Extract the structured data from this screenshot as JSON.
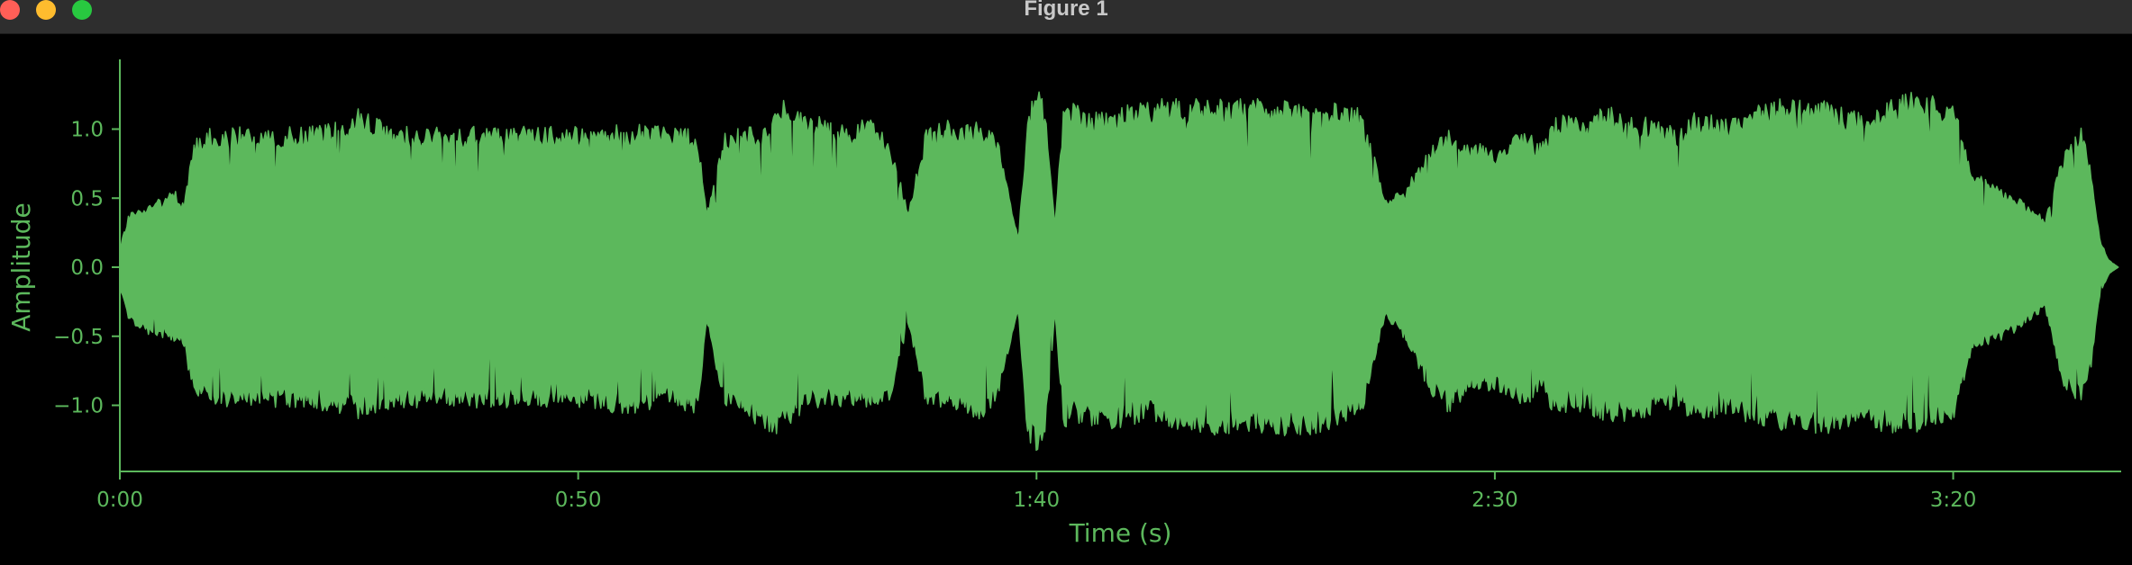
{
  "window": {
    "title": "Figure 1"
  },
  "theme": {
    "background": "#000000",
    "accent": "#5cb85c",
    "titlebar": "#2e2e2e"
  },
  "chart_data": {
    "type": "area",
    "title": "",
    "xlabel": "Time (s)",
    "ylabel": "Amplitude",
    "xlim": [
      0,
      218
    ],
    "ylim": [
      -1.5,
      1.5
    ],
    "x_ticks": [
      {
        "value": 0,
        "label": "0:00"
      },
      {
        "value": 50,
        "label": "0:50"
      },
      {
        "value": 100,
        "label": "1:40"
      },
      {
        "value": 150,
        "label": "2:30"
      },
      {
        "value": 200,
        "label": "3:20"
      }
    ],
    "y_ticks": [
      {
        "value": 1.0,
        "label": "1.0"
      },
      {
        "value": 0.5,
        "label": "0.5"
      },
      {
        "value": 0.0,
        "label": "0.0"
      },
      {
        "value": -0.5,
        "label": "−0.5"
      },
      {
        "value": -1.0,
        "label": "−1.0"
      }
    ],
    "series": [
      {
        "color": "#5cb85c",
        "x": [
          0,
          1,
          2,
          4,
          6,
          7,
          8,
          10,
          15,
          20,
          25,
          26,
          30,
          35,
          40,
          45,
          50,
          55,
          60,
          63,
          64,
          66,
          68,
          70,
          72,
          75,
          78,
          80,
          82,
          84,
          86,
          88,
          90,
          92,
          94,
          96,
          98,
          99,
          100,
          101,
          102,
          103,
          105,
          107,
          109,
          112,
          115,
          120,
          125,
          130,
          135,
          136,
          138,
          140,
          143,
          145,
          147,
          150,
          153,
          155,
          157,
          160,
          162,
          165,
          170,
          172,
          175,
          180,
          185,
          190,
          195,
          200,
          202,
          204,
          206,
          208,
          210,
          212,
          214,
          215,
          216,
          217,
          218
        ],
        "upper": [
          0.15,
          0.38,
          0.42,
          0.48,
          0.55,
          0.45,
          0.9,
          1.0,
          1.0,
          1.0,
          1.05,
          1.15,
          1.0,
          1.0,
          1.0,
          1.0,
          1.0,
          1.02,
          1.0,
          0.98,
          0.4,
          0.95,
          1.0,
          1.0,
          1.2,
          1.1,
          1.05,
          1.0,
          1.1,
          0.9,
          0.4,
          1.0,
          1.05,
          1.0,
          1.05,
          0.9,
          0.2,
          1.05,
          1.35,
          1.1,
          0.3,
          1.2,
          1.15,
          1.1,
          1.15,
          1.2,
          1.2,
          1.2,
          1.2,
          1.2,
          1.15,
          1.0,
          0.5,
          0.55,
          0.85,
          1.0,
          0.9,
          0.85,
          1.0,
          0.88,
          1.1,
          1.05,
          1.15,
          1.1,
          1.0,
          1.12,
          1.05,
          1.2,
          1.2,
          1.1,
          1.25,
          1.2,
          0.7,
          0.6,
          0.55,
          0.45,
          0.35,
          0.8,
          1.0,
          0.7,
          0.2,
          0.05,
          0.0
        ],
        "lower": [
          -0.15,
          -0.4,
          -0.45,
          -0.5,
          -0.55,
          -0.6,
          -0.9,
          -1.0,
          -1.0,
          -1.0,
          -1.05,
          -1.1,
          -1.0,
          -1.0,
          -1.0,
          -1.0,
          -1.0,
          -1.05,
          -1.0,
          -1.05,
          -0.4,
          -1.0,
          -1.05,
          -1.15,
          -1.2,
          -1.0,
          -1.0,
          -1.0,
          -1.0,
          -0.95,
          -0.4,
          -1.0,
          -1.0,
          -1.05,
          -1.1,
          -0.9,
          -0.3,
          -1.2,
          -1.35,
          -1.2,
          -0.35,
          -1.15,
          -1.1,
          -1.15,
          -1.15,
          -1.1,
          -1.15,
          -1.2,
          -1.2,
          -1.2,
          -1.1,
          -0.95,
          -0.35,
          -0.5,
          -0.9,
          -1.05,
          -0.9,
          -0.9,
          -1.0,
          -0.9,
          -1.1,
          -1.05,
          -1.1,
          -1.1,
          -1.0,
          -1.12,
          -1.05,
          -1.15,
          -1.2,
          -1.15,
          -1.2,
          -1.1,
          -0.6,
          -0.55,
          -0.5,
          -0.4,
          -0.3,
          -0.85,
          -1.0,
          -0.75,
          -0.2,
          -0.05,
          0.0
        ]
      }
    ]
  }
}
